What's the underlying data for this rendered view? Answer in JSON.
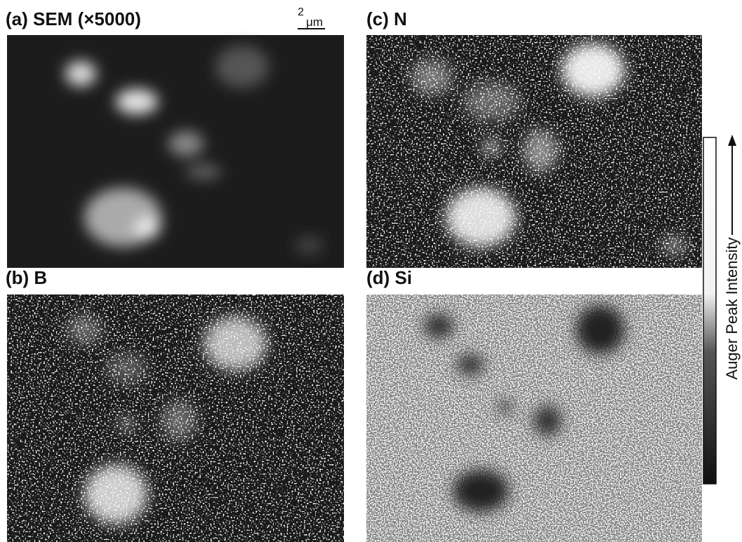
{
  "panels": [
    {
      "label": "(a) SEM (×5000)"
    },
    {
      "label": "(c) N"
    },
    {
      "label": "(b) B"
    },
    {
      "label": "(d) Si"
    }
  ],
  "scale_bar": {
    "value": "2",
    "unit": "μm"
  },
  "colorbar": {
    "label": "Auger Peak Intensity"
  }
}
